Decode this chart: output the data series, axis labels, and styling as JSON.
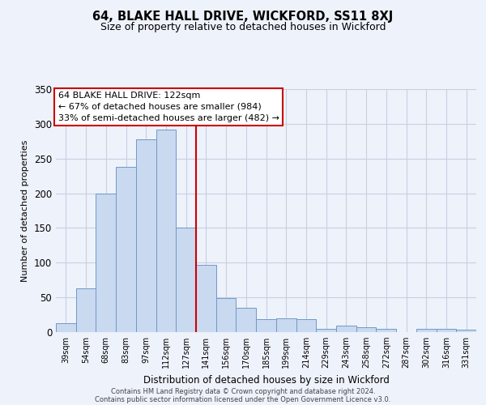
{
  "title": "64, BLAKE HALL DRIVE, WICKFORD, SS11 8XJ",
  "subtitle": "Size of property relative to detached houses in Wickford",
  "xlabel": "Distribution of detached houses by size in Wickford",
  "ylabel": "Number of detached properties",
  "bar_labels": [
    "39sqm",
    "54sqm",
    "68sqm",
    "83sqm",
    "97sqm",
    "112sqm",
    "127sqm",
    "141sqm",
    "156sqm",
    "170sqm",
    "185sqm",
    "199sqm",
    "214sqm",
    "229sqm",
    "243sqm",
    "258sqm",
    "272sqm",
    "287sqm",
    "302sqm",
    "316sqm",
    "331sqm"
  ],
  "bar_heights": [
    13,
    63,
    200,
    238,
    278,
    292,
    150,
    97,
    49,
    35,
    19,
    20,
    19,
    5,
    9,
    7,
    5,
    0,
    5,
    5,
    3
  ],
  "bar_color": "#c9d9f0",
  "bar_edge_color": "#7098c8",
  "vline_x": 6.5,
  "vline_color": "#cc0000",
  "ylim": [
    0,
    350
  ],
  "yticks": [
    0,
    50,
    100,
    150,
    200,
    250,
    300,
    350
  ],
  "annotation_title": "64 BLAKE HALL DRIVE: 122sqm",
  "annotation_line1": "← 67% of detached houses are smaller (984)",
  "annotation_line2": "33% of semi-detached houses are larger (482) →",
  "annotation_box_color": "#ffffff",
  "annotation_box_edge": "#cc0000",
  "footer_line1": "Contains HM Land Registry data © Crown copyright and database right 2024.",
  "footer_line2": "Contains public sector information licensed under the Open Government Licence v3.0.",
  "background_color": "#eef2fb",
  "grid_color": "#c8cfe0"
}
